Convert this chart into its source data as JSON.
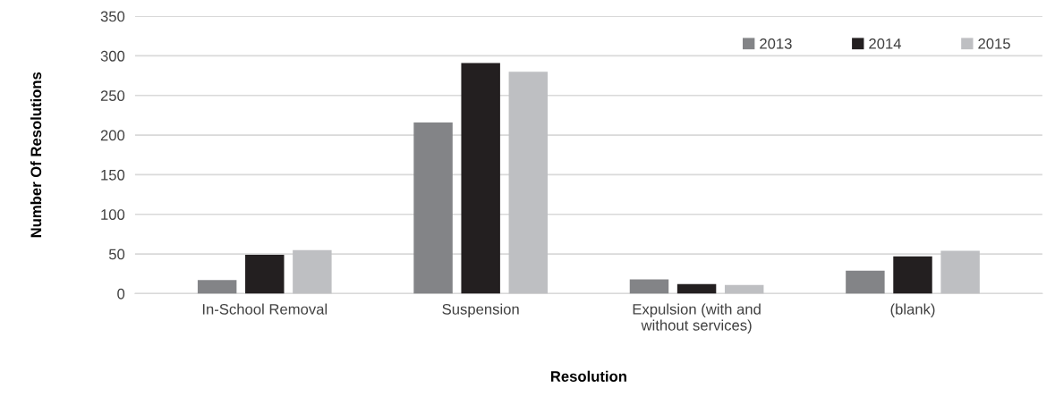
{
  "chart_data": {
    "type": "bar",
    "xlabel": "Resolution",
    "ylabel": "Number Of Resolutions",
    "categories": [
      "In-School Removal",
      "Suspension",
      "Expulsion (with and\nwithout services)",
      "(blank)"
    ],
    "series": [
      {
        "name": "2013",
        "color": "#838487",
        "values": [
          17,
          216,
          18,
          29
        ]
      },
      {
        "name": "2014",
        "color": "#231f20",
        "values": [
          49,
          291,
          12,
          47
        ]
      },
      {
        "name": "2015",
        "color": "#bebfc2",
        "values": [
          55,
          280,
          11,
          54
        ]
      }
    ],
    "ylim": [
      0,
      350
    ],
    "yticks": [
      0,
      50,
      100,
      150,
      200,
      250,
      300,
      350
    ],
    "grid": "y",
    "legend": "top right"
  }
}
